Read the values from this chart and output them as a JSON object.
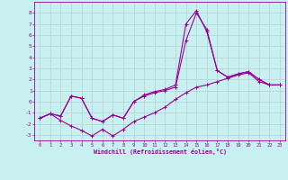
{
  "xlabel": "Windchill (Refroidissement éolien,°C)",
  "bg_color": "#c8f0f0",
  "line_color": "#990099",
  "grid_color": "#b0c8c8",
  "xlim": [
    -0.5,
    23.5
  ],
  "ylim": [
    -3.5,
    9.0
  ],
  "yticks": [
    -3,
    -2,
    -1,
    0,
    1,
    2,
    3,
    4,
    5,
    6,
    7,
    8
  ],
  "xticks": [
    0,
    1,
    2,
    3,
    4,
    5,
    6,
    7,
    8,
    9,
    10,
    11,
    12,
    13,
    14,
    15,
    16,
    17,
    18,
    19,
    20,
    21,
    22,
    23
  ],
  "line1_x": [
    0,
    1,
    2,
    3,
    4,
    5,
    6,
    7,
    8,
    9,
    10,
    11,
    12,
    13,
    14,
    15,
    16,
    17,
    18,
    19,
    20,
    21,
    22,
    23
  ],
  "line1_y": [
    -1.5,
    -1.1,
    -1.7,
    -2.2,
    -2.6,
    -3.1,
    -2.5,
    -3.1,
    -2.5,
    -1.8,
    -1.4,
    -1.0,
    -0.5,
    0.2,
    0.8,
    1.3,
    1.5,
    1.8,
    2.1,
    2.4,
    2.6,
    1.8,
    1.5,
    1.5
  ],
  "line2_x": [
    0,
    1,
    2,
    3,
    4,
    5,
    6,
    7,
    8,
    9,
    10,
    11,
    12,
    13,
    14,
    15,
    16,
    17,
    18,
    19,
    20,
    21,
    22,
    23
  ],
  "line2_y": [
    -1.5,
    -1.1,
    -1.3,
    0.5,
    0.3,
    -1.5,
    -1.8,
    -1.2,
    -1.5,
    0.0,
    0.5,
    0.8,
    1.0,
    1.3,
    5.5,
    8.0,
    6.5,
    2.8,
    2.2,
    2.5,
    2.7,
    2.0,
    1.5,
    1.5
  ],
  "line3_x": [
    0,
    1,
    2,
    3,
    4,
    5,
    6,
    7,
    8,
    9,
    10,
    11,
    12,
    13,
    14,
    15,
    16,
    17,
    18,
    19,
    20,
    21,
    22,
    23
  ],
  "line3_y": [
    -1.5,
    -1.1,
    -1.3,
    0.5,
    0.3,
    -1.5,
    -1.8,
    -1.2,
    -1.5,
    0.0,
    0.6,
    0.9,
    1.1,
    1.5,
    7.0,
    8.2,
    6.3,
    2.8,
    2.2,
    2.5,
    2.7,
    2.0,
    1.5,
    1.5
  ]
}
